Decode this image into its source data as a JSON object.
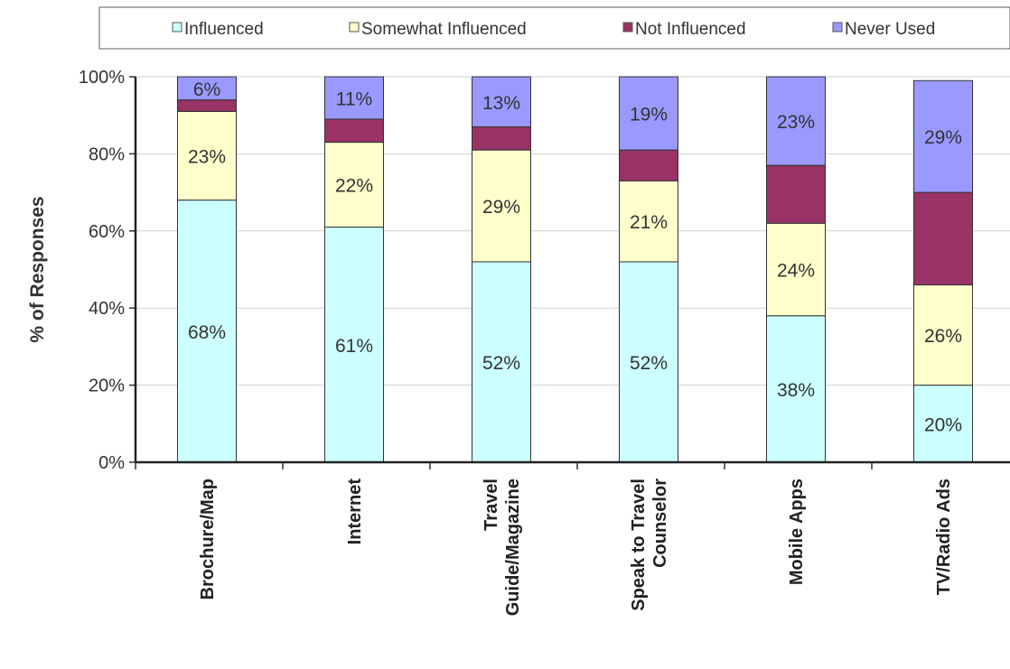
{
  "chart_data": {
    "type": "bar",
    "stacked": true,
    "ylabel": "% of Responses",
    "xlabel": "",
    "ylim": [
      0,
      100
    ],
    "yticks": [
      "0%",
      "20%",
      "40%",
      "60%",
      "80%",
      "100%"
    ],
    "legend_position": "top",
    "grid": "horizontal",
    "categories": [
      [
        "Brochure/Map"
      ],
      [
        "Internet"
      ],
      [
        "Travel",
        "Guide/Magazine"
      ],
      [
        "Speak to Travel",
        "Counselor"
      ],
      [
        "Mobile Apps"
      ],
      [
        "TV/Radio Ads"
      ]
    ],
    "series": [
      {
        "name": "Influenced",
        "color": "#ccffff",
        "values": [
          68,
          61,
          52,
          52,
          38,
          20
        ],
        "labels": [
          "68%",
          "61%",
          "52%",
          "52%",
          "38%",
          "20%"
        ]
      },
      {
        "name": "Somewhat Influenced",
        "color": "#ffffcc",
        "values": [
          23,
          22,
          29,
          21,
          24,
          26
        ],
        "labels": [
          "23%",
          "22%",
          "29%",
          "21%",
          "24%",
          "26%"
        ]
      },
      {
        "name": "Not Influenced",
        "color": "#993366",
        "values": [
          3,
          6,
          6,
          8,
          15,
          24
        ],
        "labels": [
          "",
          "",
          "",
          "",
          "",
          ""
        ]
      },
      {
        "name": "Never Used",
        "color": "#9999ff",
        "values": [
          6,
          11,
          13,
          19,
          23,
          29
        ],
        "labels": [
          "6%",
          "11%",
          "13%",
          "19%",
          "23%",
          "29%"
        ]
      }
    ]
  }
}
